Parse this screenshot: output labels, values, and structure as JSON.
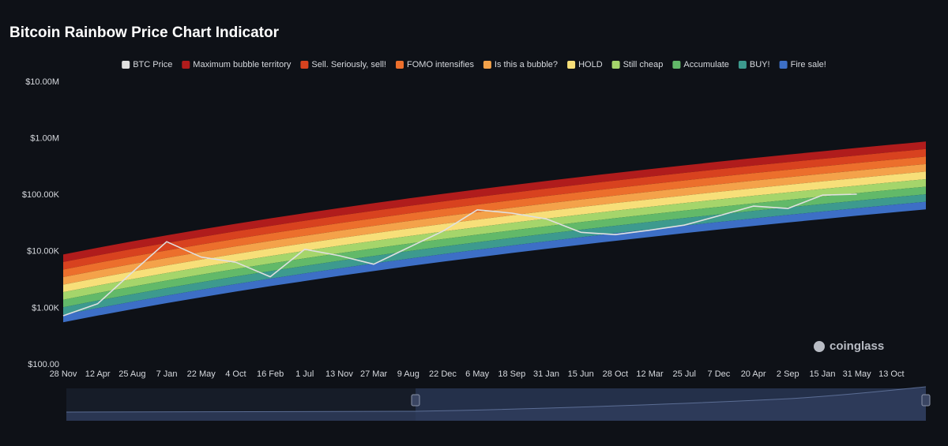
{
  "chart_data": {
    "type": "rainbow",
    "title": "Bitcoin Rainbow Price Chart Indicator",
    "watermark": "coinglass",
    "log_scale": true,
    "ylim": [
      100,
      10000000
    ],
    "yticks": [
      {
        "value": 100,
        "label": "$100.00"
      },
      {
        "value": 1000,
        "label": "$1.00K"
      },
      {
        "value": 10000,
        "label": "$10.00K"
      },
      {
        "value": 100000,
        "label": "$100.00K"
      },
      {
        "value": 1000000,
        "label": "$1.00M"
      },
      {
        "value": 10000000,
        "label": "$10.00M"
      }
    ],
    "categories": [
      "28 Nov",
      "12 Apr",
      "25 Aug",
      "7 Jan",
      "22 May",
      "4 Oct",
      "16 Feb",
      "1 Jul",
      "13 Nov",
      "27 Mar",
      "9 Aug",
      "22 Dec",
      "6 May",
      "18 Sep",
      "31 Jan",
      "15 Jun",
      "28 Oct",
      "12 Mar",
      "25 Jul",
      "7 Dec",
      "20 Apr",
      "2 Sep",
      "15 Jan",
      "31 May",
      "13 Oct",
      null
    ],
    "price": {
      "name": "BTC Price",
      "color": "#e0e0e0",
      "values": [
        735,
        1200,
        4300,
        15000,
        8000,
        6500,
        3600,
        11000,
        8500,
        6000,
        11800,
        23000,
        55000,
        48000,
        38000,
        22000,
        20000,
        24000,
        29500,
        43000,
        64000,
        58000,
        100000,
        104000,
        null,
        null
      ]
    },
    "series": [
      {
        "name": "Maximum bubble territory",
        "color": "#b01c1c",
        "values": [
          8908,
          11700,
          15170,
          19450,
          24730,
          31110,
          38820,
          47980,
          59030,
          71940,
          87300,
          105200,
          125900,
          150000,
          177800,
          209900,
          246600,
          288400,
          336500,
          390900,
          451900,
          520000,
          597100,
          683900,
          781700,
          889200
        ]
      },
      {
        "name": "Sell. Seriously, sell!",
        "color": "#d8421f",
        "values": [
          6553,
          8605,
          11160,
          14310,
          18190,
          22890,
          28560,
          35290,
          43420,
          52930,
          64220,
          77390,
          92620,
          110300,
          130800,
          154400,
          181400,
          212200,
          247600,
          287500,
          332400,
          382600,
          439200,
          503100,
          575100,
          654100
        ]
      },
      {
        "name": "FOMO intensifies",
        "color": "#ec6f2c",
        "values": [
          4816,
          6325,
          8201,
          10520,
          13370,
          16820,
          20990,
          25940,
          31910,
          38900,
          47200,
          56880,
          68070,
          81090,
          96160,
          113500,
          133300,
          155900,
          182000,
          211300,
          244300,
          281200,
          322800,
          369800,
          422700,
          480800
        ]
      },
      {
        "name": "Is this a bubble?",
        "color": "#f4a24a",
        "values": [
          3546,
          4657,
          6039,
          7742,
          9844,
          12390,
          15450,
          19100,
          23500,
          28640,
          34760,
          41880,
          50120,
          59710,
          70800,
          83560,
          98180,
          114800,
          134000,
          155600,
          179900,
          207000,
          237700,
          272300,
          311200,
          354000
        ]
      },
      {
        "name": "HOLD",
        "color": "#f7df79",
        "values": [
          2608,
          3425,
          4441,
          5694,
          7240,
          9110,
          11370,
          14050,
          17280,
          21070,
          25560,
          30800,
          36860,
          43910,
          52070,
          61460,
          72210,
          84450,
          98540,
          114400,
          132300,
          152300,
          174800,
          200300,
          228900,
          260400
        ]
      },
      {
        "name": "Still cheap",
        "color": "#a5d56b",
        "values": [
          1919,
          2520,
          3267,
          4189,
          5326,
          6702,
          8361,
          10330,
          12710,
          15500,
          18800,
          22660,
          27120,
          32300,
          38300,
          45210,
          53120,
          62120,
          72490,
          84190,
          97330,
          112000,
          128600,
          147300,
          168400,
          191500
        ]
      },
      {
        "name": "Accumulate",
        "color": "#62b969",
        "values": [
          1412,
          1854,
          2404,
          3082,
          3919,
          4931,
          6152,
          7604,
          9355,
          11400,
          13840,
          16670,
          19950,
          23770,
          28180,
          33270,
          39090,
          45710,
          53330,
          61950,
          71620,
          82420,
          94630,
          108400,
          123900,
          140900
        ]
      },
      {
        "name": "BUY!",
        "color": "#3d9a8e",
        "values": [
          1039,
          1364,
          1769,
          2267,
          2883,
          3628,
          4526,
          5594,
          6882,
          8388,
          10180,
          12270,
          14680,
          17490,
          20730,
          24470,
          28750,
          33630,
          39240,
          45570,
          52690,
          60630,
          69610,
          79740,
          91140,
          103700
        ]
      },
      {
        "name": "Fire sale!",
        "color": "#3d6fc6",
        "values": [
          764,
          1003,
          1301,
          1667,
          2120,
          2668,
          3328,
          4114,
          5061,
          6169,
          7485,
          9020,
          10790,
          12860,
          15250,
          18000,
          21150,
          24730,
          28850,
          33510,
          38740,
          44590,
          51190,
          58640,
          67030,
          76240
        ],
        "low": [
          562,
          738,
          957,
          1227,
          1560,
          1963,
          2449,
          3027,
          3724,
          4539,
          5508,
          6637,
          7943,
          9462,
          11220,
          13243,
          15560,
          18197,
          21232,
          24660,
          28510,
          32810,
          37670,
          43150,
          49320,
          56100
        ]
      }
    ]
  }
}
